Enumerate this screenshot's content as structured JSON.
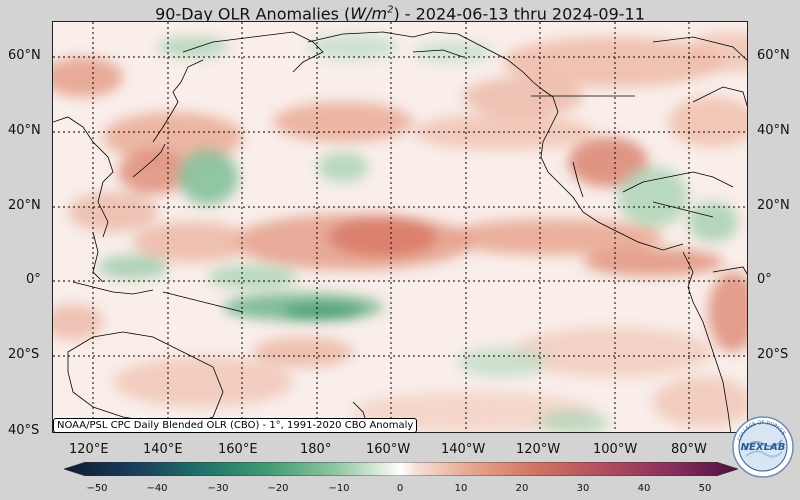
{
  "title": {
    "prefix": "90-Day OLR Anomalies (",
    "unit_base": "W/m",
    "unit_exp": "2",
    "suffix": ") - 2024-06-13 thru 2024-09-11"
  },
  "lat_labels": [
    "60°N",
    "40°N",
    "20°N",
    "0°",
    "20°S",
    "40°S"
  ],
  "lon_labels": [
    "120°E",
    "140°E",
    "160°E",
    "180°",
    "160°W",
    "140°W",
    "120°W",
    "100°W",
    "80°W"
  ],
  "source_note": "NOAA/PSL CPC Daily Blended OLR (CBO) - 1°, 1991-2020 CBO Anomaly",
  "colorbar": {
    "ticks": [
      "−50",
      "−40",
      "−30",
      "−20",
      "−10",
      "0",
      "10",
      "20",
      "30",
      "40",
      "50"
    ],
    "range": [
      -50,
      50
    ]
  },
  "logo": {
    "text": "NEXLAB",
    "ring_text": "COLLEGE OF DUPAGE"
  },
  "colors": {
    "negative_strong": "#1b2a48",
    "negative": "#2f8c6e",
    "negative_light": "#a9d3b4",
    "neutral": "#f9eeea",
    "positive_light": "#efb8a4",
    "positive": "#d77061",
    "positive_strong": "#6a1b4f"
  }
}
